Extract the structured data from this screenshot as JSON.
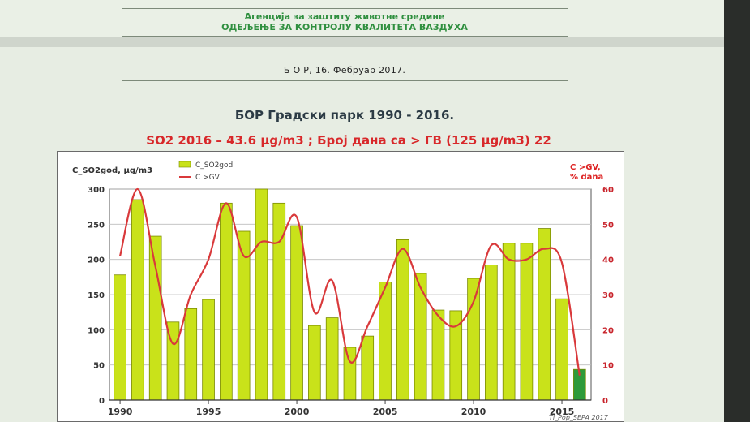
{
  "header": {
    "agency_line1": "Агенција за заштиту животне средине",
    "agency_line2": "ОДЕЉЕЊЕ ЗА КОНТРОЛУ КВАЛИТЕТА ВАЗДУХА",
    "date_line": "Б О Р,  16. Фебруар 2017."
  },
  "colors": {
    "bar": "#c9e21a",
    "bar_last": "#2e9a3a",
    "line": "#d9393b",
    "title": "#2c3b45",
    "subtitle": "#d8282a",
    "agency_text": "#2f8f3f"
  },
  "chart_data": {
    "type": "bar",
    "title": "БОР Градски парк 1990 - 2016.",
    "subtitle": "SO2  2016 – 43.6 μg/m3 ;  Број дана са > ГВ (125 μg/m3)  22",
    "ylabel_left": "C_SO2god, μg/m3",
    "ylabel_right_line1": "C >GV,",
    "ylabel_right_line2": "% dana",
    "credit": "Ti_Pop_SEPA 2017",
    "xlim": [
      1990,
      2016
    ],
    "x_ticks": [
      "1990",
      "1995",
      "2000",
      "2005",
      "2010",
      "2015"
    ],
    "ylim_left": [
      0,
      300
    ],
    "y_ticks_left": [
      "0",
      "50",
      "100",
      "150",
      "200",
      "250",
      "300"
    ],
    "ylim_right": [
      0,
      60
    ],
    "y_ticks_right": [
      "0",
      "10",
      "20",
      "30",
      "40",
      "50",
      "60"
    ],
    "grid": true,
    "legend_position": "top-left",
    "legend": [
      "C_SO2god",
      "C >GV"
    ],
    "series": [
      {
        "name": "C_SO2god",
        "type": "bar",
        "x": [
          1990,
          1991,
          1992,
          1993,
          1994,
          1995,
          1996,
          1997,
          1998,
          1999,
          2000,
          2001,
          2002,
          2003,
          2004,
          2005,
          2006,
          2007,
          2008,
          2009,
          2010,
          2011,
          2012,
          2013,
          2014,
          2015,
          2016
        ],
        "values": [
          178,
          285,
          233,
          111,
          130,
          143,
          280,
          240,
          300,
          280,
          248,
          106,
          117,
          75,
          91,
          168,
          228,
          180,
          128,
          127,
          173,
          192,
          223,
          223,
          244,
          144,
          43.6
        ]
      },
      {
        "name": "C >GV",
        "type": "line",
        "axis": "right",
        "x": [
          1990,
          1991,
          1992,
          1993,
          1994,
          1995,
          1996,
          1997,
          1998,
          1999,
          2000,
          2001,
          2002,
          2003,
          2004,
          2005,
          2006,
          2007,
          2008,
          2009,
          2010,
          2011,
          2012,
          2013,
          2014,
          2015,
          2016
        ],
        "values": [
          41,
          60,
          38,
          16,
          30,
          40,
          56,
          41,
          45,
          45,
          52,
          25,
          34,
          11,
          21,
          32,
          43,
          32,
          24,
          21,
          28,
          44,
          40,
          40,
          43,
          39,
          7
        ]
      }
    ]
  }
}
